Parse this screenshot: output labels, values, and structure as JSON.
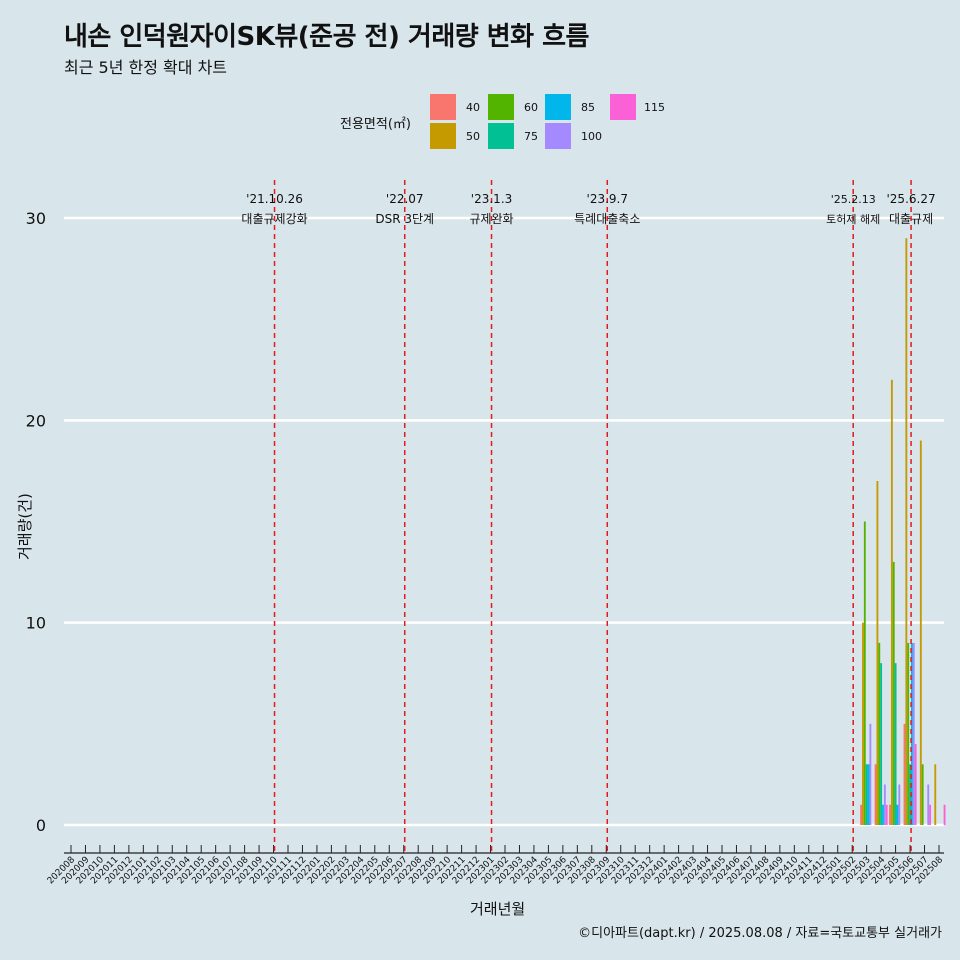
{
  "title": "내손 인덕원자이SK뷰(준공 전) 거래량 변화 흐름",
  "subtitle": "최근 5년 한정 확대 차트",
  "caption": "©디아파트(dapt.kr) / 2025.08.08 / 자료=국토교통부 실거래가",
  "legend": {
    "title": "전용면적(㎡)",
    "entries": [
      {
        "label": "40",
        "color": "#F8766D"
      },
      {
        "label": "50",
        "color": "#C49A00"
      },
      {
        "label": "60",
        "color": "#53B400"
      },
      {
        "label": "75",
        "color": "#00C094"
      },
      {
        "label": "85",
        "color": "#00B6EB"
      },
      {
        "label": "100",
        "color": "#A58AFF"
      },
      {
        "label": "115",
        "color": "#FB61D7"
      }
    ]
  },
  "chart_data": {
    "type": "bar",
    "xlabel": "거래년월",
    "ylabel": "거래량(건)",
    "ylim": [
      0,
      30
    ],
    "yticks": [
      0,
      10,
      20,
      30
    ],
    "categories": [
      "202008",
      "202009",
      "202010",
      "202011",
      "202012",
      "202101",
      "202102",
      "202103",
      "202104",
      "202105",
      "202106",
      "202107",
      "202108",
      "202109",
      "202110",
      "202111",
      "202112",
      "202201",
      "202202",
      "202203",
      "202204",
      "202205",
      "202206",
      "202207",
      "202208",
      "202209",
      "202210",
      "202211",
      "202212",
      "202301",
      "202302",
      "202303",
      "202304",
      "202305",
      "202306",
      "202307",
      "202308",
      "202309",
      "202310",
      "202311",
      "202312",
      "202401",
      "202402",
      "202403",
      "202404",
      "202405",
      "202406",
      "202407",
      "202408",
      "202409",
      "202410",
      "202411",
      "202412",
      "202501",
      "202502",
      "202503",
      "202504",
      "202505",
      "202506",
      "202507",
      "202508"
    ],
    "series": [
      {
        "name": "40",
        "color": "#F8766D",
        "data": {
          "202503": 1,
          "202504": 3,
          "202505": 1,
          "202506": 5
        }
      },
      {
        "name": "50",
        "color": "#C49A00",
        "data": {
          "202503": 10,
          "202504": 17,
          "202505": 22,
          "202506": 29,
          "202507": 19,
          "202508": 3
        }
      },
      {
        "name": "60",
        "color": "#53B400",
        "data": {
          "202503": 15,
          "202504": 9,
          "202505": 13,
          "202506": 9,
          "202507": 3
        }
      },
      {
        "name": "75",
        "color": "#00C094",
        "data": {
          "202503": 3,
          "202504": 8,
          "202505": 8,
          "202506": 3
        }
      },
      {
        "name": "85",
        "color": "#00B6EB",
        "data": {
          "202503": 3,
          "202504": 1,
          "202505": 1,
          "202506": 9
        }
      },
      {
        "name": "100",
        "color": "#A58AFF",
        "data": {
          "202503": 5,
          "202504": 2,
          "202505": 2,
          "202506": 9,
          "202507": 2
        }
      },
      {
        "name": "115",
        "color": "#FB61D7",
        "data": {
          "202504": 1,
          "202506": 4,
          "202507": 1,
          "202508": 1
        }
      }
    ],
    "annotations": [
      {
        "date": "'21.10.26",
        "label": "대출규제강화",
        "month": "202110",
        "size": "normal"
      },
      {
        "date": "'22.07",
        "label": "DSR 3단계",
        "month": "202207",
        "size": "normal"
      },
      {
        "date": "'23.1.3",
        "label": "규제완화",
        "month": "202301",
        "size": "normal"
      },
      {
        "date": "'23.9.7",
        "label": "특례대출축소",
        "month": "202309",
        "size": "normal"
      },
      {
        "date": "'25.2.13",
        "label": "토허제 해제",
        "month": "202502",
        "size": "small"
      },
      {
        "date": "'25.6.27",
        "label": "대출규제",
        "month": "202506",
        "size": "normal"
      }
    ],
    "grid": true,
    "legend_position": "top"
  }
}
